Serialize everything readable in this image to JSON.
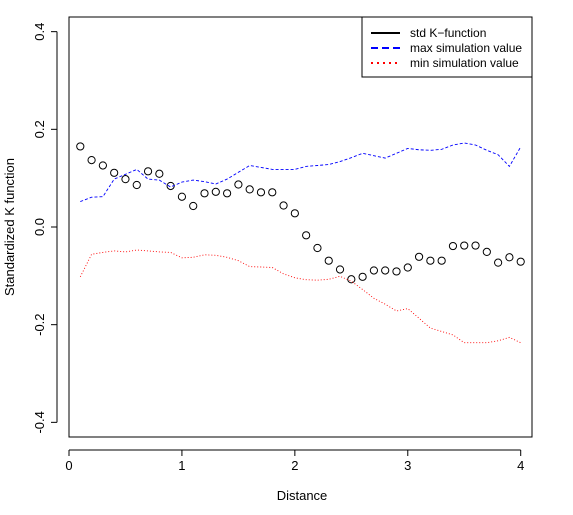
{
  "chart_data": {
    "type": "scatter",
    "xlabel": "Distance",
    "ylabel": "Standardized K function",
    "xlim": [
      0,
      4.1
    ],
    "ylim": [
      -0.43,
      0.43
    ],
    "x_ticks": [
      0,
      1,
      2,
      3,
      4
    ],
    "y_ticks": [
      -0.4,
      -0.2,
      0.0,
      0.2,
      0.4
    ],
    "x_tick_labels": [
      "0",
      "1",
      "2",
      "3",
      "4"
    ],
    "y_tick_labels": [
      "-0.4",
      "-0.2",
      "0.0",
      "0.2",
      "0.4"
    ],
    "grid": false,
    "legend_position": "top-right",
    "legend": [
      {
        "label": "std K−function",
        "color": "#000000",
        "style": "solid"
      },
      {
        "label": "max simulation value",
        "color": "#0000ff",
        "style": "dashed"
      },
      {
        "label": "min simulation value",
        "color": "#ff0000",
        "style": "dotted"
      }
    ],
    "x": [
      0.1,
      0.2,
      0.3,
      0.4,
      0.5,
      0.6,
      0.7,
      0.8,
      0.9,
      1.0,
      1.1,
      1.2,
      1.3,
      1.4,
      1.5,
      1.6,
      1.7,
      1.8,
      1.9,
      2.0,
      2.1,
      2.2,
      2.3,
      2.4,
      2.5,
      2.6,
      2.7,
      2.8,
      2.9,
      3.0,
      3.1,
      3.2,
      3.3,
      3.4,
      3.5,
      3.6,
      3.7,
      3.8,
      3.9,
      4.0
    ],
    "series": [
      {
        "color": "#000000",
        "style": "points",
        "values": [
          0.165,
          0.137,
          0.126,
          0.111,
          0.098,
          0.086,
          0.114,
          0.109,
          0.084,
          0.062,
          0.043,
          0.069,
          0.072,
          0.069,
          0.087,
          0.077,
          0.071,
          0.071,
          0.044,
          0.028,
          -0.017,
          -0.043,
          -0.069,
          -0.087,
          -0.107,
          -0.102,
          -0.089,
          -0.089,
          -0.091,
          -0.083,
          -0.061,
          -0.069,
          -0.069,
          -0.039,
          -0.038,
          -0.038,
          -0.051,
          -0.073,
          -0.062,
          -0.071
        ]
      },
      {
        "color": "#0000ff",
        "style": "dashed",
        "values": [
          0.052,
          0.061,
          0.062,
          0.098,
          0.108,
          0.118,
          0.098,
          0.096,
          0.082,
          0.092,
          0.096,
          0.093,
          0.088,
          0.098,
          0.112,
          0.126,
          0.122,
          0.118,
          0.118,
          0.118,
          0.124,
          0.126,
          0.128,
          0.134,
          0.142,
          0.151,
          0.146,
          0.141,
          0.151,
          0.161,
          0.158,
          0.157,
          0.159,
          0.168,
          0.172,
          0.168,
          0.157,
          0.148,
          0.124,
          0.164
        ]
      },
      {
        "color": "#ff0000",
        "style": "dotted",
        "values": [
          -0.102,
          -0.056,
          -0.052,
          -0.049,
          -0.051,
          -0.047,
          -0.049,
          -0.051,
          -0.052,
          -0.063,
          -0.062,
          -0.057,
          -0.058,
          -0.062,
          -0.069,
          -0.081,
          -0.082,
          -0.083,
          -0.096,
          -0.104,
          -0.108,
          -0.109,
          -0.107,
          -0.101,
          -0.111,
          -0.128,
          -0.146,
          -0.158,
          -0.172,
          -0.167,
          -0.187,
          -0.207,
          -0.214,
          -0.221,
          -0.237,
          -0.237,
          -0.237,
          -0.233,
          -0.226,
          -0.237
        ]
      }
    ]
  }
}
